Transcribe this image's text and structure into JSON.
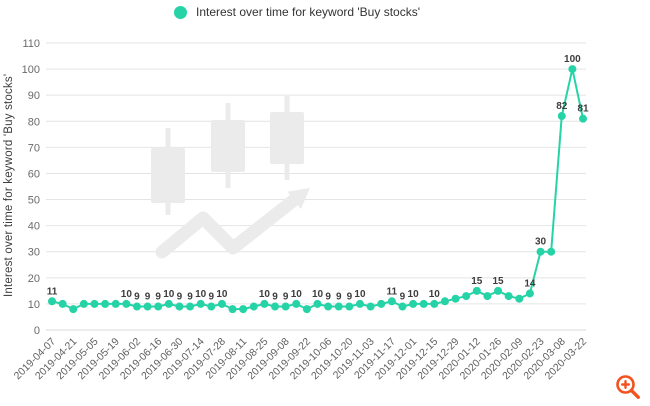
{
  "legend": {
    "label": "Interest over time for keyword 'Buy stocks'"
  },
  "y_axis": {
    "title": "Interest over time for keyword 'Buy stocks'"
  },
  "colors": {
    "accent": "#25d3a7",
    "legend_text": "#333333",
    "point_label": "#3d3d3d",
    "axis_text": "#666666",
    "grid": "#e4e4e4",
    "axis_line": "#d8d8d8",
    "watermark": "#ebebeb",
    "zoom_icon": "#f4511e"
  },
  "icons": {
    "legend_marker": "filled-circle",
    "watermark": "candlestick-chart-with-trend-arrow",
    "zoom": "magnifier-with-plus"
  },
  "chart_data": {
    "type": "line",
    "title": "Interest over time for keyword 'Buy stocks'",
    "xlabel": "",
    "ylabel": "Interest over time for keyword 'Buy stocks'",
    "ylim": [
      0,
      110
    ],
    "y_ticks": [
      0,
      10,
      20,
      30,
      40,
      50,
      60,
      70,
      80,
      90,
      100,
      110
    ],
    "grid": true,
    "legend_position": "top-center",
    "x_tick_rotation": -45,
    "x": [
      "2019-04-07",
      "2019-04-14",
      "2019-04-21",
      "2019-04-28",
      "2019-05-05",
      "2019-05-12",
      "2019-05-19",
      "2019-05-26",
      "2019-06-02",
      "2019-06-09",
      "2019-06-16",
      "2019-06-23",
      "2019-06-30",
      "2019-07-07",
      "2019-07-14",
      "2019-07-21",
      "2019-07-28",
      "2019-08-04",
      "2019-08-11",
      "2019-08-18",
      "2019-08-25",
      "2019-09-01",
      "2019-09-08",
      "2019-09-15",
      "2019-09-22",
      "2019-09-29",
      "2019-10-06",
      "2019-10-13",
      "2019-10-20",
      "2019-10-27",
      "2019-11-03",
      "2019-11-10",
      "2019-11-17",
      "2019-11-24",
      "2019-12-01",
      "2019-12-08",
      "2019-12-15",
      "2019-12-22",
      "2019-12-29",
      "2020-01-05",
      "2020-01-12",
      "2020-01-19",
      "2020-01-26",
      "2020-02-02",
      "2020-02-09",
      "2020-02-16",
      "2020-02-23",
      "2020-03-01",
      "2020-03-08",
      "2020-03-15",
      "2020-03-22"
    ],
    "values": [
      11,
      10,
      8,
      10,
      10,
      10,
      10,
      10,
      9,
      9,
      9,
      10,
      9,
      9,
      10,
      9,
      10,
      8,
      8,
      9,
      10,
      9,
      9,
      10,
      8,
      10,
      9,
      9,
      9,
      10,
      9,
      10,
      11,
      9,
      10,
      10,
      10,
      11,
      12,
      13,
      15,
      13,
      15,
      13,
      12,
      14,
      30,
      30,
      82,
      100,
      81
    ],
    "labeled_point_indices": [
      0,
      7,
      8,
      9,
      10,
      11,
      12,
      13,
      14,
      15,
      16,
      20,
      21,
      22,
      23,
      25,
      26,
      27,
      28,
      29,
      32,
      33,
      34,
      36,
      40,
      42,
      45,
      46,
      48,
      49,
      50
    ],
    "x_tick_labels": [
      "2019-04-07",
      "2019-04-21",
      "2019-05-05",
      "2019-05-19",
      "2019-06-02",
      "2019-06-16",
      "2019-06-30",
      "2019-07-14",
      "2019-07-28",
      "2019-08-11",
      "2019-08-25",
      "2019-09-08",
      "2019-09-22",
      "2019-10-06",
      "2019-10-20",
      "2019-11-03",
      "2019-11-17",
      "2019-12-01",
      "2019-12-15",
      "2019-12-29",
      "2020-01-12",
      "2020-01-26",
      "2020-02-09",
      "2020-02-23",
      "2020-03-08",
      "2020-03-22"
    ]
  }
}
